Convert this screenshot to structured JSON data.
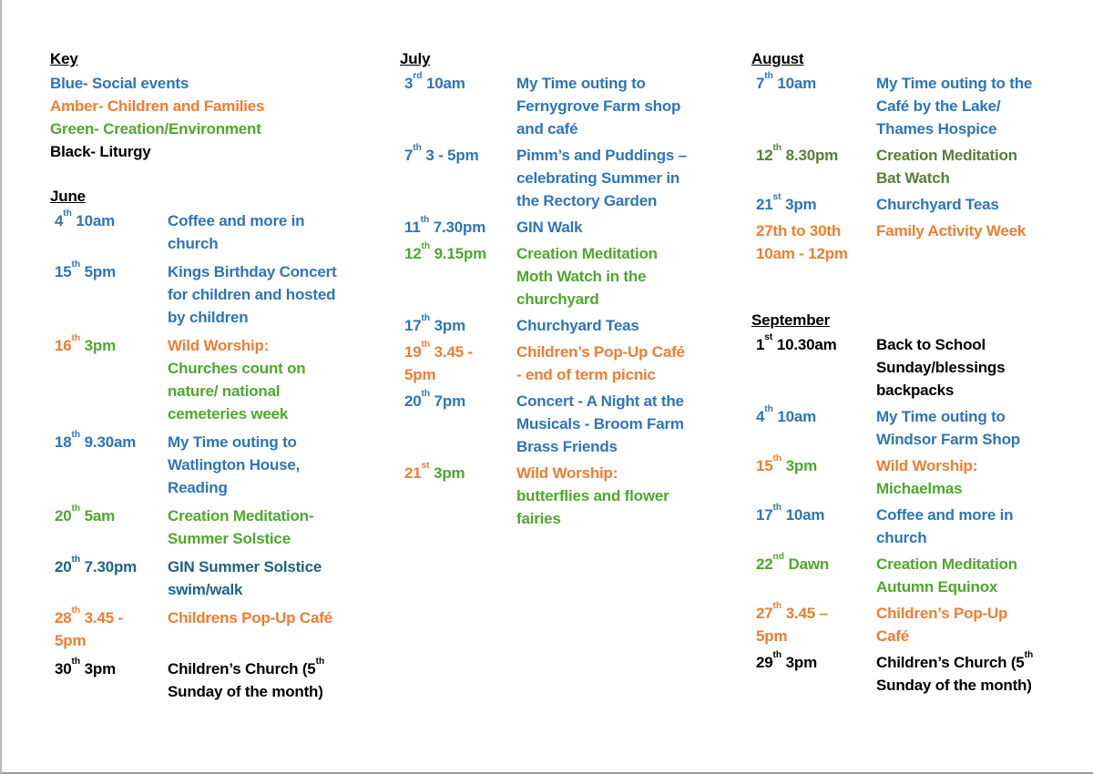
{
  "colors": {
    "blue": "#2E75B6",
    "amber": "#ED7D31",
    "green": "#4EA72E",
    "darkgreen": "#538135",
    "teal": "#1F6287",
    "black": "#000000"
  },
  "columns": [
    {
      "sections": [
        {
          "type": "key",
          "title": "Key",
          "items": [
            {
              "label": "Blue- Social events",
              "c": "blue"
            },
            {
              "label": "Amber- Children and Families",
              "c": "amber"
            },
            {
              "label": "Green- Creation/Environment",
              "c": "green"
            },
            {
              "label": "Black- Liturgy",
              "c": "black"
            }
          ]
        },
        {
          "type": "month",
          "title": "June",
          "events": [
            {
              "date": [
                {
                  "t": "4",
                  "c": "blue"
                },
                {
                  "t": "th",
                  "c": "blue",
                  "sup": true
                },
                {
                  "t": " 10am",
                  "c": "blue"
                }
              ],
              "desc": [
                {
                  "t": "Coffee and more in\nchurch",
                  "c": "blue"
                }
              ]
            },
            {
              "date": [
                {
                  "t": "15",
                  "c": "blue"
                },
                {
                  "t": "th",
                  "c": "blue",
                  "sup": true
                },
                {
                  "t": " 5pm",
                  "c": "blue"
                }
              ],
              "desc": [
                {
                  "t": "Kings Birthday Concert\nfor children and hosted\nby children",
                  "c": "blue"
                }
              ]
            },
            {
              "date": [
                {
                  "t": "16",
                  "c": "amber"
                },
                {
                  "t": "th",
                  "c": "amber",
                  "sup": true
                },
                {
                  "t": " 3pm",
                  "c": "green"
                }
              ],
              "desc": [
                {
                  "t": "Wild Worship:\n",
                  "c": "amber"
                },
                {
                  "t": "Churches count on\nnature/ national\ncemeteries week",
                  "c": "green"
                }
              ]
            },
            {
              "date": [
                {
                  "t": "18",
                  "c": "blue"
                },
                {
                  "t": "th",
                  "c": "blue",
                  "sup": true
                },
                {
                  "t": " 9.30am",
                  "c": "blue"
                }
              ],
              "desc": [
                {
                  "t": "My Time outing to\nWatlington House,\nReading",
                  "c": "blue"
                }
              ]
            },
            {
              "date": [
                {
                  "t": "20",
                  "c": "green"
                },
                {
                  "t": "th",
                  "c": "green",
                  "sup": true
                },
                {
                  "t": " 5am",
                  "c": "green"
                }
              ],
              "desc": [
                {
                  "t": "Creation Meditation-\nSummer Solstice",
                  "c": "green"
                }
              ]
            },
            {
              "date": [
                {
                  "t": "20",
                  "c": "teal"
                },
                {
                  "t": "th",
                  "c": "teal",
                  "sup": true
                },
                {
                  "t": " 7.30pm",
                  "c": "teal"
                }
              ],
              "desc": [
                {
                  "t": "GIN Summer Solstice\nswim/walk",
                  "c": "teal"
                }
              ]
            },
            {
              "date": [
                {
                  "t": "28",
                  "c": "amber"
                },
                {
                  "t": "th",
                  "c": "amber",
                  "sup": true
                },
                {
                  "t": " 3.45 -\n5pm",
                  "c": "amber"
                }
              ],
              "desc": [
                {
                  "t": "Childrens Pop-Up Café",
                  "c": "amber"
                }
              ]
            },
            {
              "date": [
                {
                  "t": "30",
                  "c": "black"
                },
                {
                  "t": "th",
                  "c": "black",
                  "sup": true
                },
                {
                  "t": " 3pm",
                  "c": "black"
                }
              ],
              "desc": [
                {
                  "t": "Children’s Church (5",
                  "c": "black"
                },
                {
                  "t": "th",
                  "c": "black",
                  "sup": true
                },
                {
                  "t": "\nSunday of the month)",
                  "c": "black"
                }
              ]
            }
          ]
        }
      ]
    },
    {
      "sections": [
        {
          "type": "month",
          "title": "July",
          "events": [
            {
              "date": [
                {
                  "t": "3",
                  "c": "blue"
                },
                {
                  "t": "rd",
                  "c": "blue",
                  "sup": true
                },
                {
                  "t": " 10am",
                  "c": "blue"
                }
              ],
              "desc": [
                {
                  "t": "My Time outing to\nFernygrove Farm shop\nand café",
                  "c": "blue"
                }
              ]
            },
            {
              "date": [
                {
                  "t": "7",
                  "c": "blue"
                },
                {
                  "t": "th",
                  "c": "blue",
                  "sup": true
                },
                {
                  "t": " 3 - 5pm",
                  "c": "blue"
                }
              ],
              "desc": [
                {
                  "t": "Pimm’s and Puddings –\ncelebrating Summer in\nthe Rectory Garden",
                  "c": "blue"
                }
              ]
            },
            {
              "date": [
                {
                  "t": "11",
                  "c": "blue"
                },
                {
                  "t": "th",
                  "c": "blue",
                  "sup": true
                },
                {
                  "t": " 7.30pm",
                  "c": "blue"
                }
              ],
              "desc": [
                {
                  "t": "GIN Walk",
                  "c": "blue"
                }
              ]
            },
            {
              "date": [
                {
                  "t": "12",
                  "c": "green"
                },
                {
                  "t": "th",
                  "c": "green",
                  "sup": true
                },
                {
                  "t": " 9.15pm",
                  "c": "green"
                }
              ],
              "desc": [
                {
                  "t": "Creation Meditation\nMoth Watch in the\nchurchyard",
                  "c": "green"
                }
              ]
            },
            {
              "date": [
                {
                  "t": "17",
                  "c": "blue"
                },
                {
                  "t": "th",
                  "c": "blue",
                  "sup": true
                },
                {
                  "t": " 3pm",
                  "c": "blue"
                }
              ],
              "desc": [
                {
                  "t": "Churchyard Teas",
                  "c": "blue"
                }
              ]
            },
            {
              "date": [
                {
                  "t": "19",
                  "c": "amber"
                },
                {
                  "t": "th",
                  "c": "amber",
                  "sup": true
                },
                {
                  "t": " 3.45 -\n5pm",
                  "c": "amber"
                }
              ],
              "desc": [
                {
                  "t": "Children’s Pop-Up Café\n- end of term picnic",
                  "c": "amber"
                }
              ]
            },
            {
              "date": [
                {
                  "t": "20",
                  "c": "blue"
                },
                {
                  "t": "th",
                  "c": "blue",
                  "sup": true
                },
                {
                  "t": " 7pm",
                  "c": "blue"
                }
              ],
              "desc": [
                {
                  "t": "Concert - A Night at the\nMusicals - Broom Farm\nBrass Friends",
                  "c": "blue"
                }
              ]
            },
            {
              "date": [
                {
                  "t": "21",
                  "c": "amber"
                },
                {
                  "t": "st",
                  "c": "amber",
                  "sup": true
                },
                {
                  "t": " 3pm",
                  "c": "green"
                }
              ],
              "desc": [
                {
                  "t": "Wild Worship:\n",
                  "c": "amber"
                },
                {
                  "t": "butterflies and flower\nfairies",
                  "c": "green"
                }
              ]
            }
          ]
        }
      ]
    },
    {
      "sections": [
        {
          "type": "month",
          "title": "August",
          "events": [
            {
              "date": [
                {
                  "t": "7",
                  "c": "blue"
                },
                {
                  "t": "th",
                  "c": "blue",
                  "sup": true
                },
                {
                  "t": " 10am",
                  "c": "blue"
                }
              ],
              "desc": [
                {
                  "t": "My Time outing to the\nCafé by the Lake/\nThames Hospice",
                  "c": "blue"
                }
              ]
            },
            {
              "date": [
                {
                  "t": "12",
                  "c": "darkgreen"
                },
                {
                  "t": "th",
                  "c": "darkgreen",
                  "sup": true
                },
                {
                  "t": " 8.30pm",
                  "c": "darkgreen"
                }
              ],
              "desc": [
                {
                  "t": "Creation Meditation\nBat Watch",
                  "c": "darkgreen"
                }
              ]
            },
            {
              "date": [
                {
                  "t": "21",
                  "c": "blue"
                },
                {
                  "t": "st",
                  "c": "blue",
                  "sup": true
                },
                {
                  "t": " 3pm",
                  "c": "blue"
                }
              ],
              "desc": [
                {
                  "t": "Churchyard Teas",
                  "c": "blue"
                }
              ]
            },
            {
              "date": [
                {
                  "t": "27th to 30th\n10am - 12pm",
                  "c": "amber"
                }
              ],
              "desc": [
                {
                  "t": "Family Activity Week",
                  "c": "amber"
                }
              ]
            }
          ]
        },
        {
          "type": "month",
          "title": "September",
          "events": [
            {
              "date": [
                {
                  "t": "1",
                  "c": "black"
                },
                {
                  "t": "st",
                  "c": "black",
                  "sup": true
                },
                {
                  "t": " 10.30am",
                  "c": "black"
                }
              ],
              "desc": [
                {
                  "t": "Back to School\nSunday/blessings\nbackpacks",
                  "c": "black"
                }
              ]
            },
            {
              "date": [
                {
                  "t": "4",
                  "c": "blue"
                },
                {
                  "t": "th",
                  "c": "blue",
                  "sup": true
                },
                {
                  "t": " 10am",
                  "c": "blue"
                }
              ],
              "desc": [
                {
                  "t": "My Time outing to\nWindsor Farm Shop",
                  "c": "blue"
                }
              ]
            },
            {
              "date": [
                {
                  "t": "15",
                  "c": "amber"
                },
                {
                  "t": "th",
                  "c": "amber",
                  "sup": true
                },
                {
                  "t": " 3pm",
                  "c": "green"
                }
              ],
              "desc": [
                {
                  "t": "Wild Worship:\n",
                  "c": "amber"
                },
                {
                  "t": "Michaelmas",
                  "c": "green"
                }
              ]
            },
            {
              "date": [
                {
                  "t": "17",
                  "c": "blue"
                },
                {
                  "t": "th",
                  "c": "blue",
                  "sup": true
                },
                {
                  "t": " 10am",
                  "c": "blue"
                }
              ],
              "desc": [
                {
                  "t": "Coffee and more in\nchurch",
                  "c": "blue"
                }
              ]
            },
            {
              "date": [
                {
                  "t": "22",
                  "c": "green"
                },
                {
                  "t": "nd",
                  "c": "green",
                  "sup": true
                },
                {
                  "t": " Dawn",
                  "c": "green"
                }
              ],
              "desc": [
                {
                  "t": "Creation Meditation\nAutumn Equinox",
                  "c": "green"
                }
              ]
            },
            {
              "date": [
                {
                  "t": "27",
                  "c": "amber"
                },
                {
                  "t": "th",
                  "c": "amber",
                  "sup": true
                },
                {
                  "t": " 3.45 –\n5pm",
                  "c": "amber"
                }
              ],
              "desc": [
                {
                  "t": "Children’s Pop-Up\nCafé",
                  "c": "amber"
                }
              ]
            },
            {
              "date": [
                {
                  "t": "29",
                  "c": "black"
                },
                {
                  "t": "th",
                  "c": "black",
                  "sup": true
                },
                {
                  "t": " 3pm",
                  "c": "black"
                }
              ],
              "desc": [
                {
                  "t": "Children’s Church (5",
                  "c": "black"
                },
                {
                  "t": "th",
                  "c": "black",
                  "sup": true
                },
                {
                  "t": "\nSunday of the month)",
                  "c": "black"
                }
              ]
            }
          ]
        }
      ]
    }
  ]
}
